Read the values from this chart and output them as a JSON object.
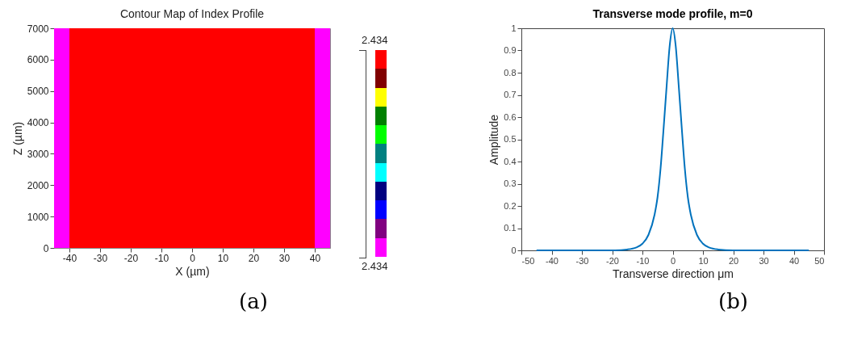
{
  "chart_data": [
    {
      "type": "histogram",
      "title": "Contour Map of Index Profile",
      "xlabel": "X (µm)",
      "ylabel": "Z (µm)",
      "xlim": [
        -45,
        45
      ],
      "xticks": [
        -40,
        -30,
        -20,
        -10,
        0,
        10,
        20,
        30,
        40
      ],
      "ylim": [
        0,
        7000
      ],
      "yticks": [
        0,
        1000,
        2000,
        3000,
        4000,
        5000,
        6000,
        7000
      ],
      "bins": [
        -45,
        -40,
        40,
        45
      ],
      "values": [
        7000,
        7000,
        7000
      ],
      "colors": [
        "#ff00ff",
        "#ff0000",
        "#ff00ff"
      ],
      "annotations": [
        "2.434",
        "2.434",
        "(a)"
      ]
    },
    {
      "type": "line",
      "title": "Transverse mode profile, m=0",
      "xlabel": "Transverse direction μm",
      "ylabel": "Amplitude",
      "xlim": [
        -50,
        50
      ],
      "xticks": [
        -50,
        -40,
        -30,
        -20,
        -10,
        0,
        10,
        20,
        30,
        40,
        50
      ],
      "ylim": [
        0,
        1
      ],
      "yticks": [
        0,
        0.1,
        0.2,
        0.3,
        0.4,
        0.5,
        0.6,
        0.7,
        0.8,
        0.9,
        1
      ],
      "x": [
        -45,
        -30,
        -20,
        -15,
        -12,
        -10,
        -8,
        -6,
        -5,
        -4,
        -3,
        -2,
        -1,
        0,
        1,
        2,
        3,
        4,
        5,
        6,
        8,
        10,
        12,
        15,
        20,
        30,
        45
      ],
      "series": [
        {
          "color": "#0072bd",
          "values": [
            0,
            0,
            0,
            0.004,
            0.013,
            0.03,
            0.07,
            0.16,
            0.24,
            0.37,
            0.55,
            0.74,
            0.92,
            1,
            0.92,
            0.74,
            0.55,
            0.37,
            0.24,
            0.16,
            0.07,
            0.03,
            0.013,
            0.004,
            0,
            0,
            0
          ]
        }
      ],
      "annotations": [
        "(b)"
      ]
    }
  ]
}
